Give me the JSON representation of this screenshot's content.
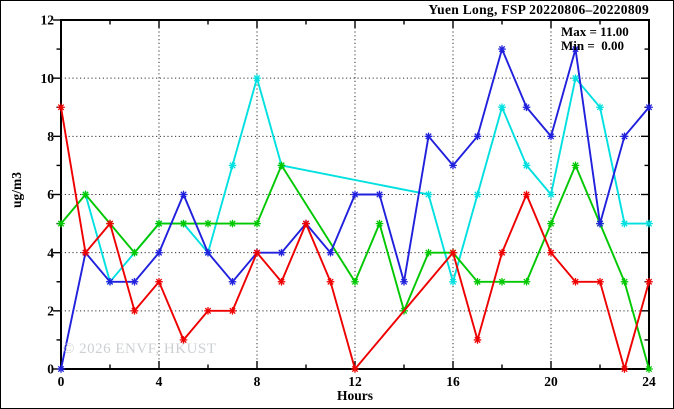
{
  "chart_data": {
    "type": "line",
    "title": "Yuen Long, FSP 20220806–20220809",
    "xlabel": "Hours",
    "ylabel": "ug/m3",
    "xlim": [
      0,
      24
    ],
    "ylim": [
      0,
      12
    ],
    "x_major_tick_step": 4,
    "x_minor_tick_step": 2,
    "y_major_tick_step": 2,
    "y_minor_tick_step": 1,
    "x_tick_labels": [
      "0",
      "4",
      "8",
      "12",
      "16",
      "20",
      "24"
    ],
    "y_tick_labels": [
      "0",
      "2",
      "4",
      "6",
      "8",
      "10",
      "12"
    ],
    "grid_x_values": [
      4,
      8,
      12,
      16,
      20
    ],
    "grid_y_values": [
      2,
      4,
      6,
      8,
      10
    ],
    "grid_style": "dotted",
    "legend": "none",
    "marker": "asterisk",
    "annotation": {
      "max": "Max = 11.00",
      "min": "Min =  0.00"
    },
    "watermark": "© 2026 ENVF, HKUST",
    "x": [
      0,
      1,
      2,
      3,
      4,
      5,
      6,
      7,
      8,
      9,
      10,
      11,
      12,
      13,
      14,
      15,
      16,
      17,
      18,
      19,
      20,
      21,
      22,
      23,
      24
    ],
    "series": [
      {
        "name": "series-cyan",
        "color": "#00e0e0",
        "values": [
          null,
          6,
          3,
          4,
          5,
          5,
          4,
          7,
          10,
          7,
          null,
          null,
          null,
          null,
          null,
          6,
          3,
          6,
          9,
          7,
          6,
          10,
          9,
          5,
          5
        ]
      },
      {
        "name": "series-green",
        "color": "#00c800",
        "values": [
          5,
          6,
          5,
          4,
          5,
          5,
          5,
          5,
          5,
          7,
          null,
          null,
          3,
          5,
          2,
          4,
          4,
          3,
          3,
          3,
          5,
          7,
          5,
          3,
          0
        ]
      },
      {
        "name": "series-blue",
        "color": "#2020dd",
        "values": [
          0,
          4,
          3,
          3,
          4,
          6,
          4,
          3,
          4,
          4,
          5,
          4,
          6,
          6,
          3,
          8,
          7,
          8,
          11,
          9,
          8,
          11,
          5,
          8,
          9
        ]
      },
      {
        "name": "series-red",
        "color": "#ee0000",
        "values": [
          9,
          4,
          5,
          2,
          3,
          1,
          2,
          2,
          4,
          3,
          5,
          3,
          0,
          null,
          null,
          null,
          4,
          1,
          4,
          6,
          4,
          3,
          3,
          0,
          3
        ]
      }
    ],
    "axis_color": "#000000",
    "grid_color": "#333333",
    "background_color": "#ffffff"
  }
}
